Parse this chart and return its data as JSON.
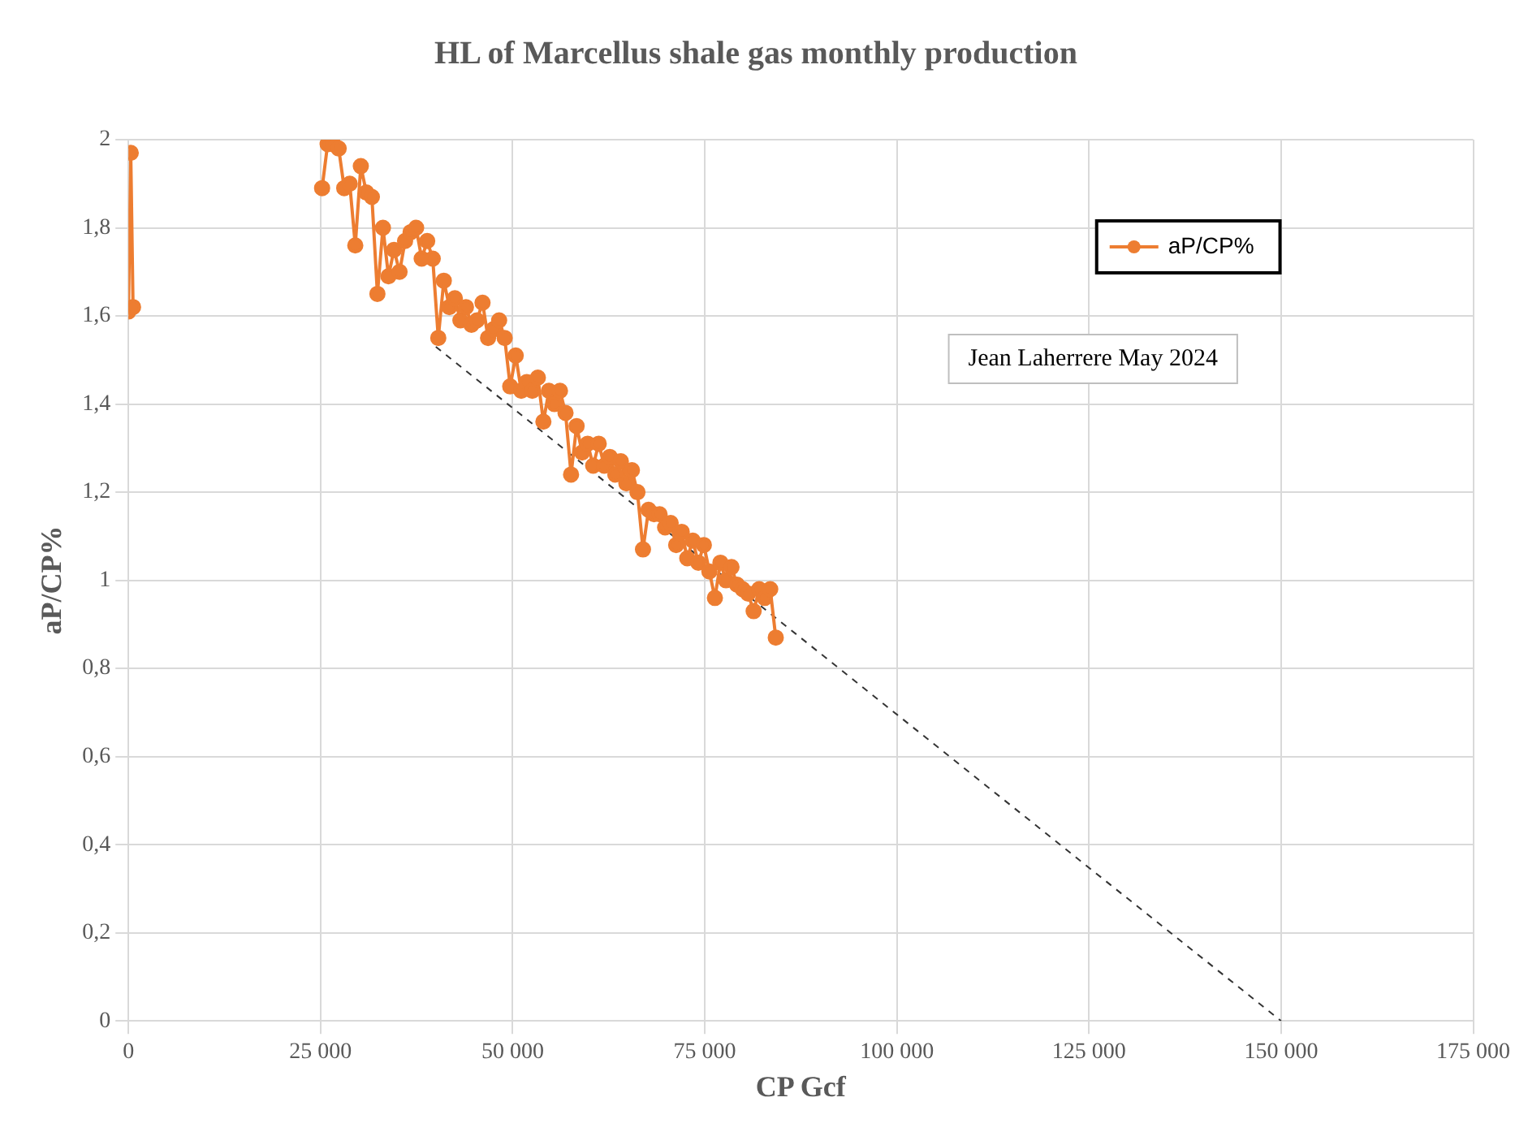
{
  "chart_data": {
    "type": "line",
    "title": "HL of Marcellus shale gas monthly production",
    "xlabel": "CP Gcf",
    "ylabel": "aP/CP%",
    "xlim": [
      0,
      175000
    ],
    "xticks": [
      {
        "value": 0,
        "label": "0"
      },
      {
        "value": 25000,
        "label": "25 000"
      },
      {
        "value": 50000,
        "label": "50 000"
      },
      {
        "value": 75000,
        "label": "75 000"
      },
      {
        "value": 100000,
        "label": "100 000"
      },
      {
        "value": 125000,
        "label": "125 000"
      },
      {
        "value": 150000,
        "label": "150 000"
      },
      {
        "value": 175000,
        "label": "175 000"
      }
    ],
    "ylim": [
      0,
      2
    ],
    "yticks": [
      {
        "value": 0,
        "label": "0"
      },
      {
        "value": 0.2,
        "label": "0,2"
      },
      {
        "value": 0.4,
        "label": "0,4"
      },
      {
        "value": 0.6,
        "label": "0,6"
      },
      {
        "value": 0.8,
        "label": "0,8"
      },
      {
        "value": 1,
        "label": "1"
      },
      {
        "value": 1.2,
        "label": "1,2"
      },
      {
        "value": 1.4,
        "label": "1,4"
      },
      {
        "value": 1.6,
        "label": "1,6"
      },
      {
        "value": 1.8,
        "label": "1,8"
      },
      {
        "value": 2,
        "label": "2"
      }
    ],
    "grid": true,
    "legend": "top right",
    "marker": "circle",
    "line_style": "solid",
    "annotations": [
      "Jean Laherrere May 2024"
    ],
    "series": [
      {
        "name": "aP/CP%",
        "color": "#ed7d31",
        "x": [
          0,
          300,
          600,
          20000,
          25200,
          25920,
          26640,
          27360,
          28080,
          28800,
          29520,
          30240,
          30960,
          31680,
          32400,
          33120,
          33840,
          34560,
          35280,
          36000,
          36720,
          37440,
          38160,
          38880,
          39600,
          40320,
          41040,
          41760,
          42480,
          43200,
          43920,
          44640,
          45360,
          46080,
          46800,
          47520,
          48240,
          48960,
          49680,
          50400,
          51120,
          51840,
          52560,
          53280,
          54000,
          54720,
          55440,
          56160,
          56880,
          57600,
          58320,
          59040,
          59760,
          60480,
          61200,
          61920,
          62640,
          63360,
          64080,
          64800,
          65520,
          66240,
          66960,
          67680,
          68400,
          69120,
          69840,
          70560,
          71280,
          72000,
          72720,
          73440,
          74160,
          74880,
          75600,
          76320,
          77040,
          77760,
          78480,
          79200,
          79920,
          80640,
          81360,
          82080,
          82800,
          83520,
          84240
        ],
        "values": [
          1.61,
          1.97,
          1.62,
          null,
          1.89,
          1.99,
          1.99,
          1.98,
          1.89,
          1.9,
          1.76,
          1.94,
          1.88,
          1.87,
          1.65,
          1.8,
          1.69,
          1.75,
          1.7,
          1.77,
          1.79,
          1.8,
          1.73,
          1.77,
          1.73,
          1.55,
          1.68,
          1.62,
          1.64,
          1.59,
          1.62,
          1.58,
          1.59,
          1.63,
          1.55,
          1.57,
          1.59,
          1.55,
          1.44,
          1.51,
          1.43,
          1.45,
          1.43,
          1.46,
          1.36,
          1.43,
          1.4,
          1.43,
          1.38,
          1.24,
          1.35,
          1.29,
          1.31,
          1.26,
          1.31,
          1.26,
          1.28,
          1.24,
          1.27,
          1.22,
          1.25,
          1.2,
          1.07,
          1.16,
          1.15,
          1.15,
          1.12,
          1.13,
          1.08,
          1.11,
          1.05,
          1.09,
          1.04,
          1.08,
          1.02,
          0.96,
          1.04,
          1.0,
          1.03,
          0.99,
          0.98,
          0.97,
          0.93,
          0.98,
          0.96,
          0.98,
          0.87
        ]
      },
      {
        "type": "line",
        "color": "#333333",
        "line_style": "dashed",
        "marker": "none",
        "x": [
          40000,
          150000
        ],
        "values": [
          1.53,
          0
        ]
      }
    ]
  }
}
